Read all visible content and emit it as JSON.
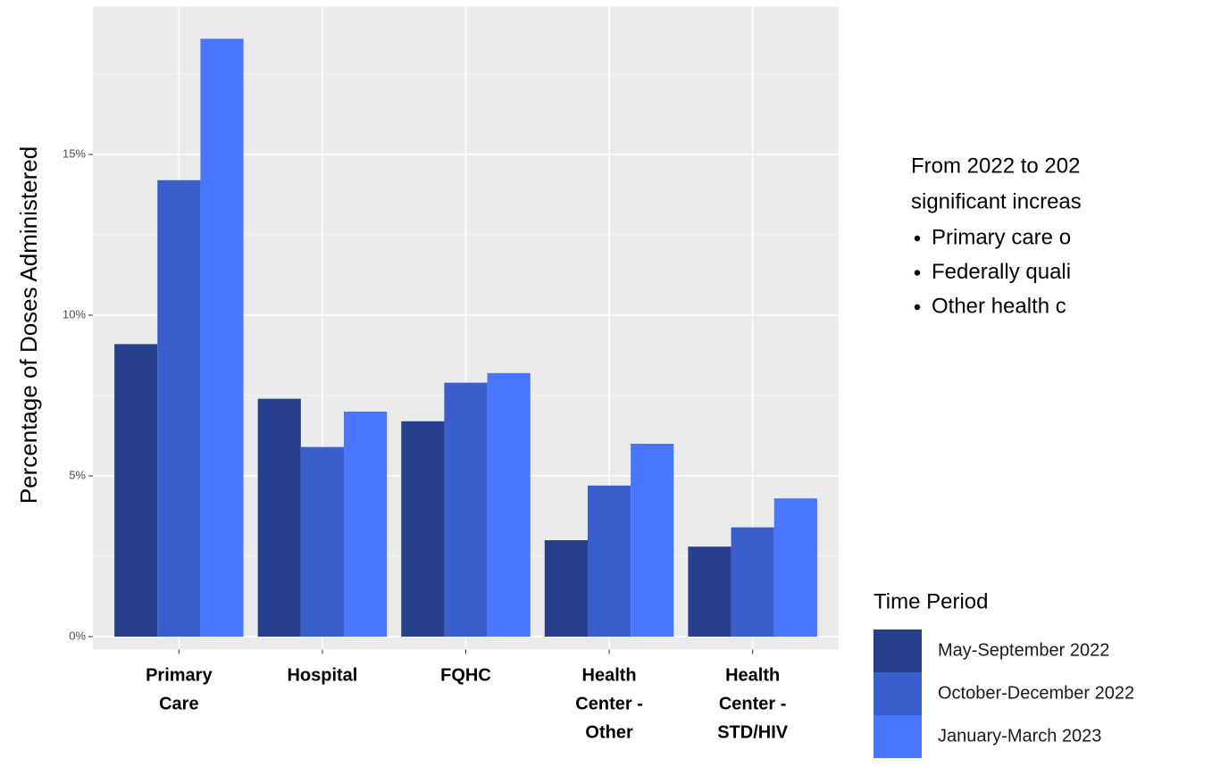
{
  "chart_data": {
    "type": "grouped_bar",
    "y_label": "Percentage of Doses Administered",
    "categories": [
      [
        "Primary",
        "Care"
      ],
      [
        "Hospital"
      ],
      [
        "FQHC"
      ],
      [
        "Health",
        "Center -",
        "Other"
      ],
      [
        "Health",
        "Center -",
        "STD/HIV"
      ]
    ],
    "series": [
      {
        "name": "May-September 2022",
        "color": "#27408b",
        "values": [
          9.1,
          7.4,
          6.7,
          3.0,
          2.8
        ]
      },
      {
        "name": "October-December 2022",
        "color": "#3a5fcd",
        "values": [
          14.2,
          5.9,
          7.9,
          4.7,
          3.4
        ]
      },
      {
        "name": "January-March 2023",
        "color": "#4876ff",
        "values": [
          18.6,
          7.0,
          8.2,
          6.0,
          4.3
        ]
      }
    ],
    "ylim": [
      -0.4,
      19.6
    ],
    "yticks": [
      {
        "value": 0,
        "label": "0%"
      },
      {
        "value": 5,
        "label": "5%"
      },
      {
        "value": 10,
        "label": "10%"
      },
      {
        "value": 15,
        "label": "15%"
      }
    ],
    "yminorticks": [
      2.5,
      7.5,
      12.5,
      17.5
    ],
    "grid": true,
    "legend_title": "Time Period",
    "legend_position": "bottom-right",
    "annotation": {
      "lines": [
        "From 2022 to 202",
        "significant increas"
      ],
      "bullets": [
        "Primary care o",
        "Federally quali",
        "Other health c"
      ]
    }
  }
}
